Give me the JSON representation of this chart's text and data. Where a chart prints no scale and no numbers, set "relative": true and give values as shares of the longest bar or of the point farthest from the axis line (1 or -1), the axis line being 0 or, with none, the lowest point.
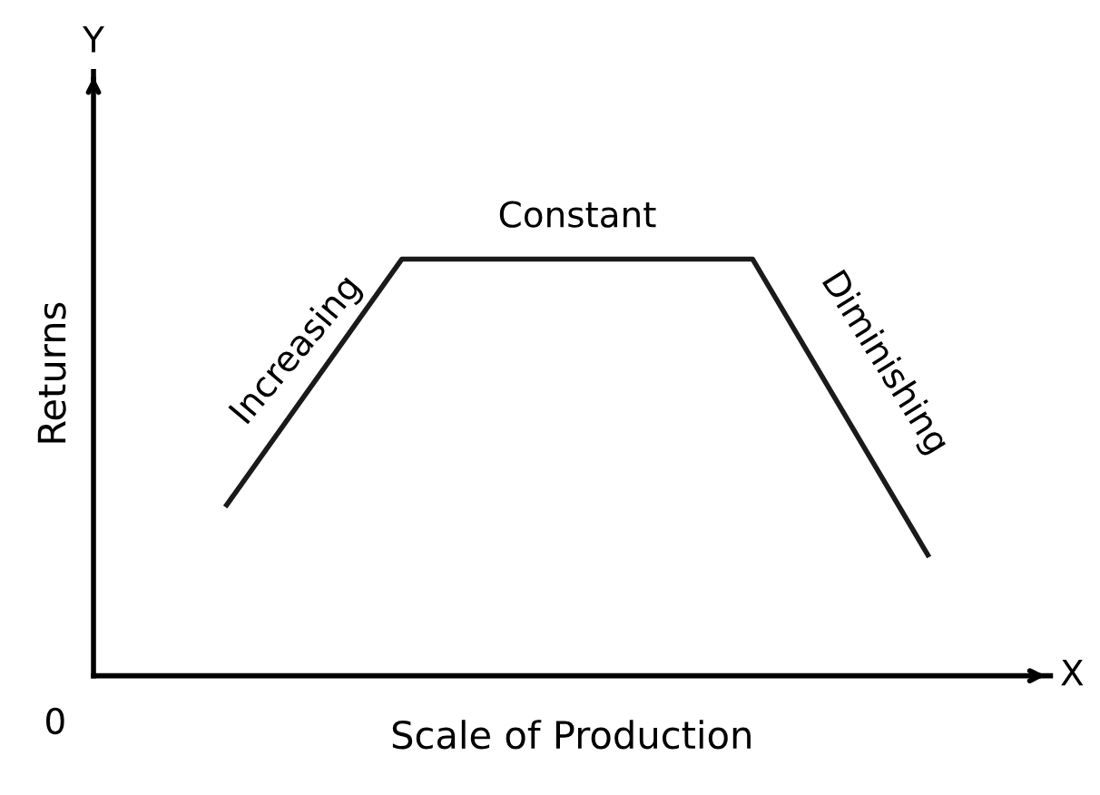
{
  "chart_data": {
    "type": "line",
    "relative": true,
    "xlabel": "Scale of Production",
    "ylabel": "Returns",
    "categories": [
      null,
      null,
      null,
      null,
      null
    ],
    "series": [
      {
        "color": "#1a1a1a",
        "values": [
          0.41,
          1,
          1,
          1,
          0.29
        ]
      }
    ],
    "marker": "none",
    "line_style": "solid",
    "annotations": [
      "Increasing",
      "Constant",
      "Diminishing",
      "Y",
      "X",
      "0"
    ]
  }
}
